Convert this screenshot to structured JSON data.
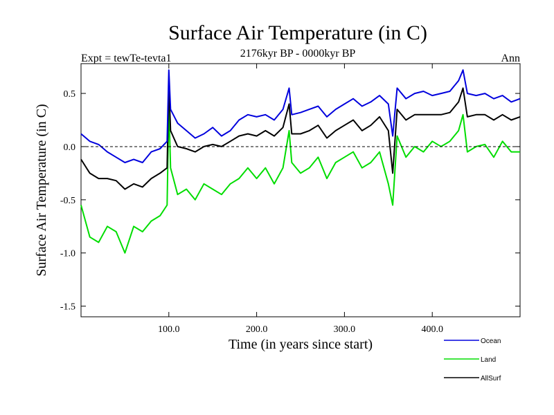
{
  "chart_data": {
    "type": "line",
    "title": "Surface Air Temperature (in C)",
    "subtitle": "2176kyr BP - 0000kyr BP",
    "left_label": "Expt = tewTe-tevta1",
    "right_label": "Ann",
    "xlabel": "Time (in years since start)",
    "ylabel": "Surface Air Temperature (in C)",
    "xlim": [
      0,
      500
    ],
    "ylim": [
      -1.6,
      0.78
    ],
    "x_ticks": [
      100,
      200,
      300,
      400
    ],
    "x_tick_labels": [
      "100.0",
      "200.0",
      "300.0",
      "400.0"
    ],
    "y_ticks": [
      -1.5,
      -1.0,
      -0.5,
      0.0,
      0.5
    ],
    "y_tick_labels": [
      "-1.5",
      "-1.0",
      "-0.5",
      "0.0",
      "0.5"
    ],
    "zero_line": "dashed",
    "legend_position": "bottom-right",
    "x": [
      0,
      10,
      20,
      30,
      40,
      50,
      60,
      70,
      80,
      90,
      98,
      100,
      102,
      110,
      120,
      130,
      140,
      150,
      160,
      170,
      180,
      190,
      200,
      210,
      220,
      230,
      237,
      240,
      250,
      260,
      270,
      280,
      290,
      300,
      310,
      320,
      330,
      340,
      350,
      355,
      360,
      370,
      380,
      390,
      400,
      410,
      420,
      430,
      435,
      440,
      450,
      460,
      470,
      480,
      490,
      500
    ],
    "series": [
      {
        "name": "Ocean",
        "color": "#0000dd",
        "values": [
          0.12,
          0.05,
          0.02,
          -0.05,
          -0.1,
          -0.15,
          -0.12,
          -0.15,
          -0.05,
          -0.02,
          0.05,
          0.72,
          0.35,
          0.22,
          0.15,
          0.08,
          0.12,
          0.18,
          0.1,
          0.15,
          0.25,
          0.3,
          0.28,
          0.3,
          0.25,
          0.35,
          0.55,
          0.3,
          0.32,
          0.35,
          0.38,
          0.28,
          0.35,
          0.4,
          0.45,
          0.38,
          0.42,
          0.48,
          0.4,
          0.1,
          0.55,
          0.45,
          0.5,
          0.52,
          0.48,
          0.5,
          0.52,
          0.62,
          0.72,
          0.5,
          0.48,
          0.5,
          0.45,
          0.48,
          0.42,
          0.45
        ]
      },
      {
        "name": "Land",
        "color": "#00dd00",
        "values": [
          -0.55,
          -0.85,
          -0.9,
          -0.75,
          -0.8,
          -1.0,
          -0.75,
          -0.8,
          -0.7,
          -0.65,
          -0.55,
          0.4,
          -0.2,
          -0.45,
          -0.4,
          -0.5,
          -0.35,
          -0.4,
          -0.45,
          -0.35,
          -0.3,
          -0.2,
          -0.3,
          -0.2,
          -0.35,
          -0.2,
          0.15,
          -0.15,
          -0.25,
          -0.2,
          -0.1,
          -0.3,
          -0.15,
          -0.1,
          -0.05,
          -0.2,
          -0.15,
          -0.05,
          -0.35,
          -0.55,
          0.1,
          -0.1,
          0.0,
          -0.05,
          0.05,
          0.0,
          0.05,
          0.15,
          0.3,
          -0.05,
          0.0,
          0.02,
          -0.1,
          0.05,
          -0.05,
          -0.05
        ]
      },
      {
        "name": "AllSurf",
        "color": "#000000",
        "values": [
          -0.12,
          -0.25,
          -0.3,
          -0.3,
          -0.32,
          -0.4,
          -0.35,
          -0.38,
          -0.3,
          -0.25,
          -0.2,
          0.6,
          0.15,
          0.0,
          -0.02,
          -0.05,
          0.0,
          0.02,
          0.0,
          0.05,
          0.1,
          0.12,
          0.1,
          0.15,
          0.1,
          0.18,
          0.4,
          0.12,
          0.12,
          0.15,
          0.2,
          0.08,
          0.15,
          0.2,
          0.25,
          0.15,
          0.2,
          0.28,
          0.15,
          -0.25,
          0.35,
          0.25,
          0.3,
          0.3,
          0.3,
          0.3,
          0.32,
          0.42,
          0.55,
          0.28,
          0.3,
          0.3,
          0.25,
          0.3,
          0.25,
          0.28
        ]
      }
    ]
  }
}
